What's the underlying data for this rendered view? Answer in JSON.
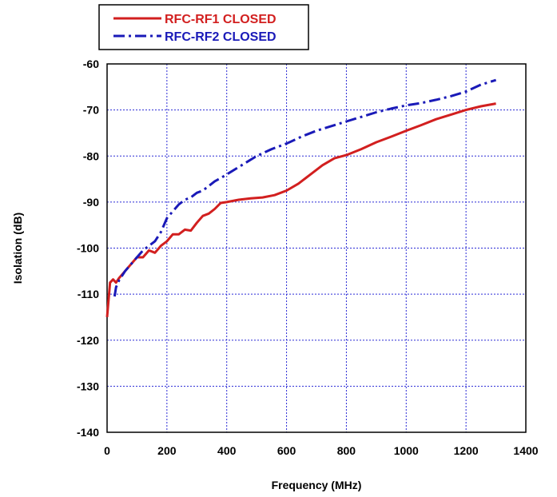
{
  "chart_data": {
    "type": "line",
    "title": "",
    "xlabel": "Frequency (MHz)",
    "ylabel": "Isolation (dB)",
    "xlim": [
      0,
      1400
    ],
    "ylim": [
      -140,
      -60
    ],
    "xticks": [
      "0",
      "200",
      "400",
      "600",
      "800",
      "1000",
      "1200",
      "1400"
    ],
    "yticks": [
      "-60",
      "-70",
      "-80",
      "-90",
      "-100",
      "-110",
      "-120",
      "-130",
      "-140"
    ],
    "grid": true,
    "legend_position": "top-left",
    "series": [
      {
        "name": "RFC-RF1 CLOSED",
        "color": "#d21f1f",
        "style": "solid",
        "x": [
          0,
          10,
          20,
          30,
          40,
          60,
          80,
          100,
          120,
          140,
          160,
          180,
          200,
          220,
          240,
          260,
          280,
          300,
          320,
          340,
          360,
          380,
          400,
          440,
          480,
          520,
          560,
          600,
          640,
          680,
          720,
          760,
          800,
          850,
          900,
          950,
          1000,
          1050,
          1100,
          1150,
          1200,
          1250,
          1300
        ],
        "y": [
          -115,
          -107.5,
          -106.8,
          -107.5,
          -106.5,
          -105,
          -103.5,
          -102,
          -102,
          -100.5,
          -101,
          -99.5,
          -98.5,
          -97,
          -97,
          -96,
          -96.2,
          -94.5,
          -93,
          -92.5,
          -91.5,
          -90.2,
          -90,
          -89.5,
          -89.2,
          -89,
          -88.5,
          -87.5,
          -86,
          -84,
          -82,
          -80.5,
          -79.8,
          -78.5,
          -77,
          -75.8,
          -74.5,
          -73.3,
          -72,
          -71,
          -70,
          -69.2,
          -68.6
        ]
      },
      {
        "name": "RFC-RF2 CLOSED",
        "color": "#1a1ab8",
        "style": "dashed",
        "x": [
          25,
          30,
          40,
          60,
          80,
          100,
          120,
          140,
          160,
          180,
          200,
          220,
          240,
          260,
          280,
          300,
          320,
          340,
          360,
          380,
          400,
          450,
          500,
          550,
          600,
          650,
          700,
          750,
          800,
          850,
          900,
          950,
          1000,
          1050,
          1100,
          1150,
          1200,
          1250,
          1300
        ],
        "y": [
          -110.5,
          -108.5,
          -107,
          -105,
          -103.5,
          -102,
          -100.5,
          -99.5,
          -98.5,
          -96.5,
          -93.5,
          -92,
          -90.5,
          -89.5,
          -89,
          -88,
          -87.5,
          -86.5,
          -85.5,
          -84.8,
          -84,
          -82,
          -80,
          -78.5,
          -77.3,
          -75.8,
          -74.5,
          -73.5,
          -72.5,
          -71.5,
          -70.5,
          -69.7,
          -69,
          -68.5,
          -67.8,
          -67,
          -66,
          -64.5,
          -63.5
        ]
      }
    ]
  }
}
